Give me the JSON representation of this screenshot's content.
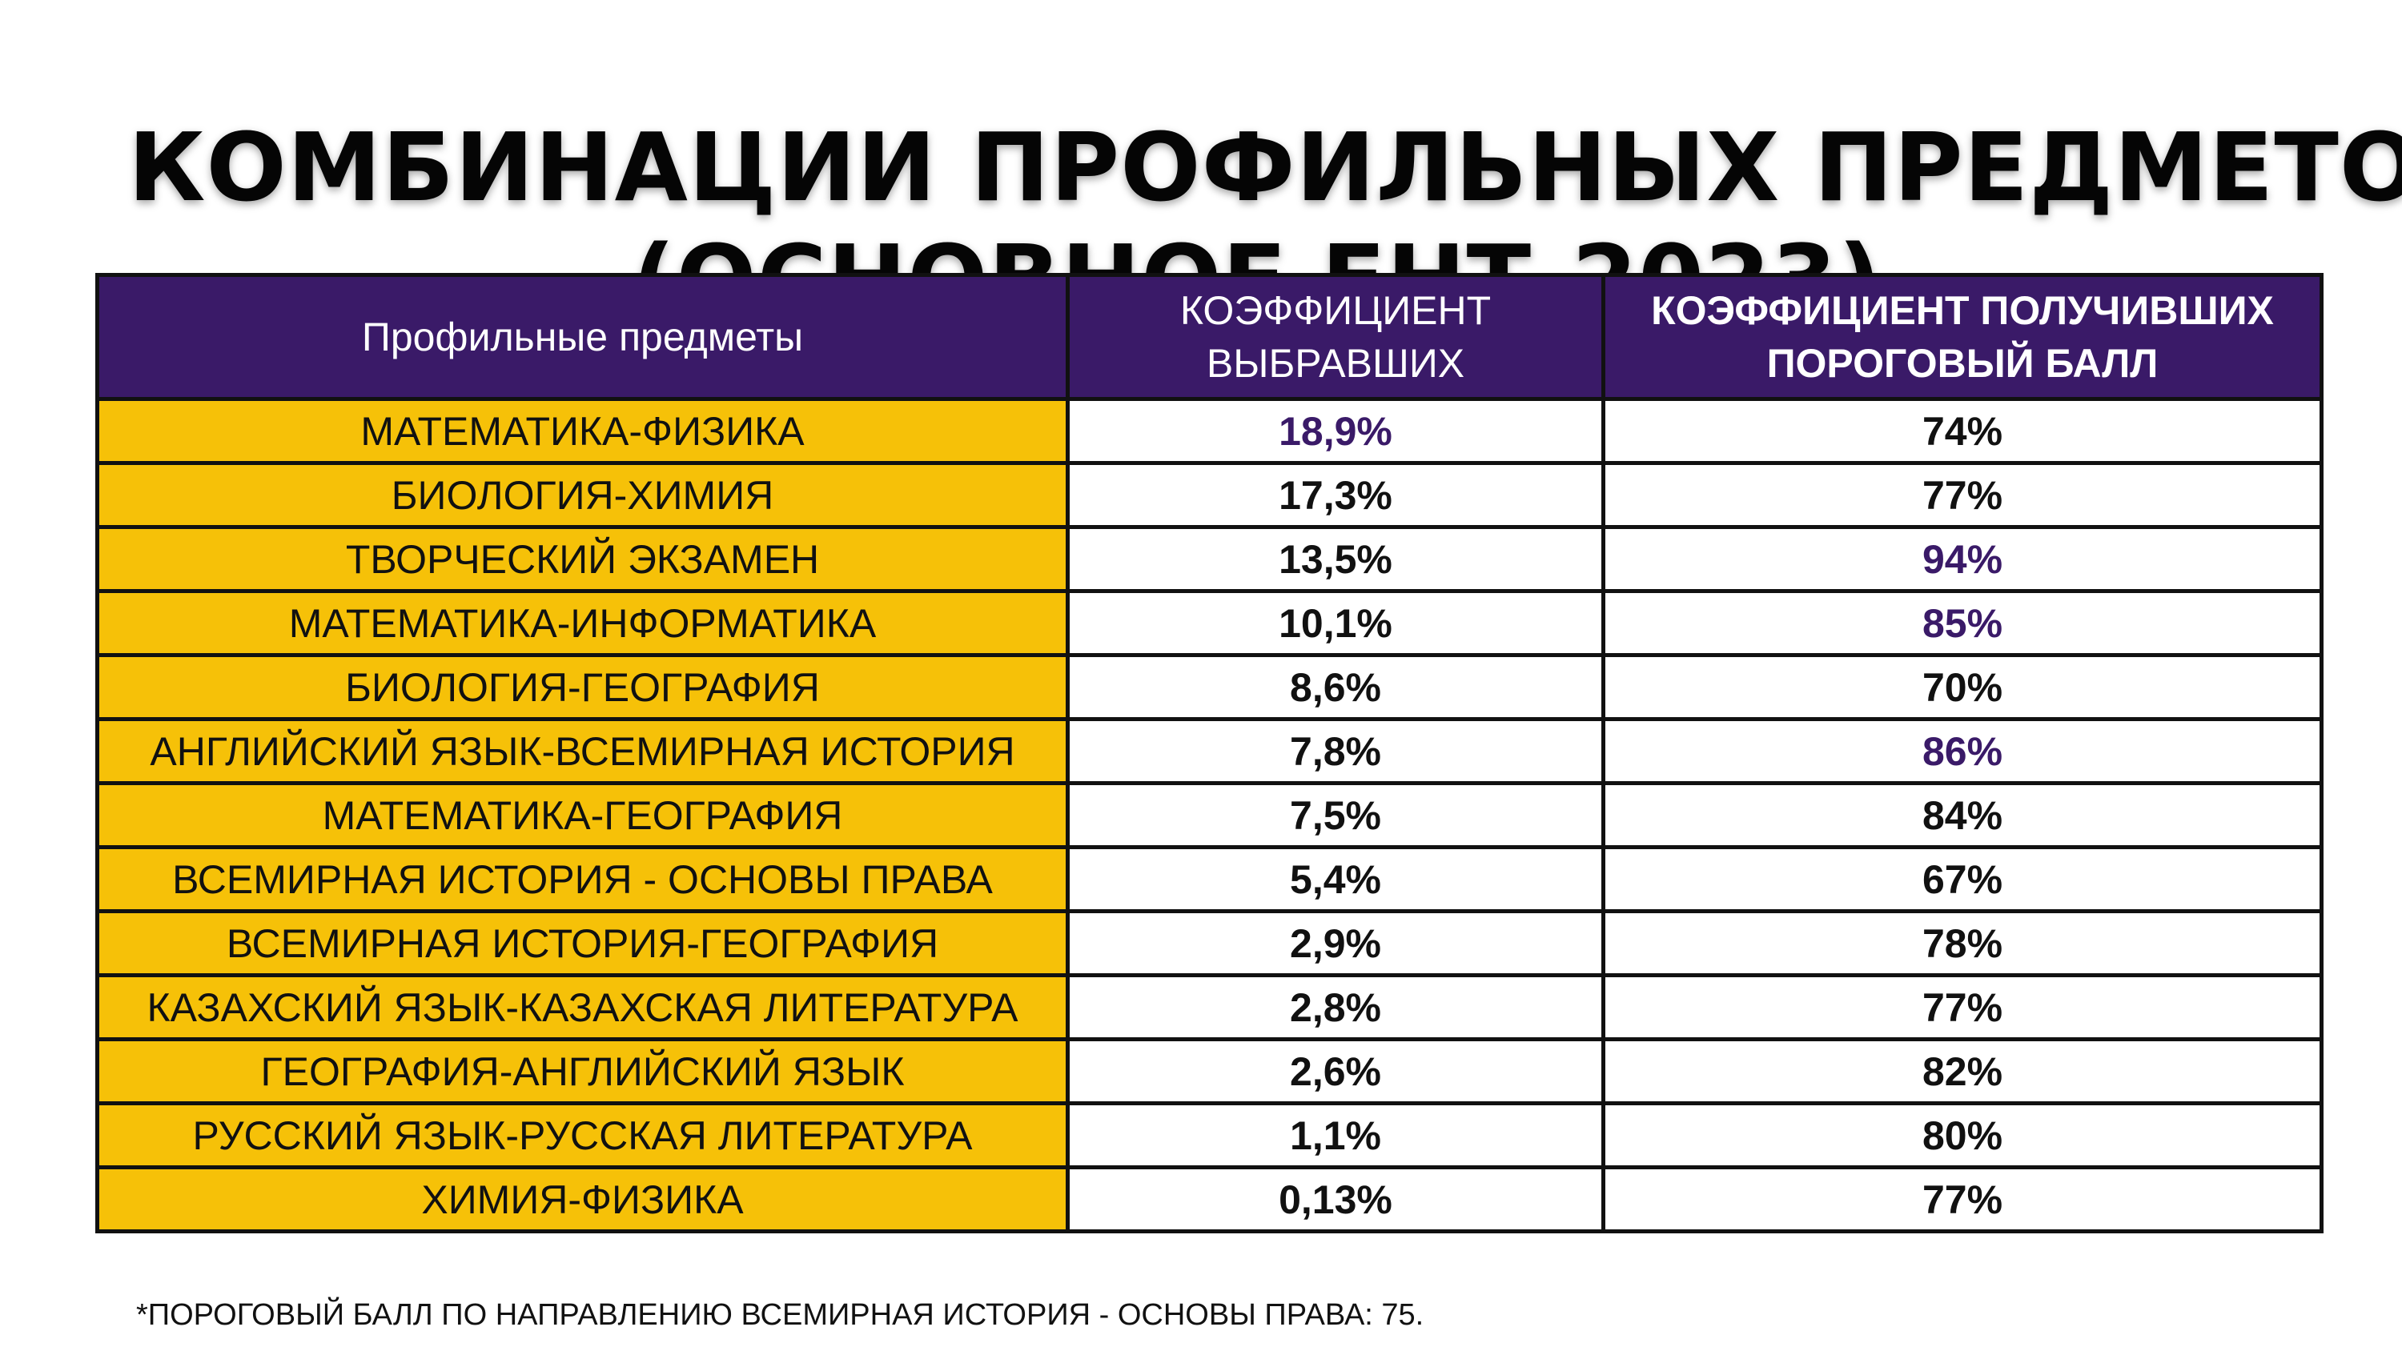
{
  "title": {
    "line1": "КОМБИНАЦИИ ПРОФИЛЬНЫХ ПРЕДМЕТОВ",
    "line2": "(ОСНОВНОЕ ЕНТ-2023)"
  },
  "table": {
    "headers": {
      "subjects": "Профильные предметы",
      "chosen_line1": "КОЭФФИЦИЕНТ",
      "chosen_line2": "ВЫБРАВШИХ",
      "passed_line1": "КОЭФФИЦИЕНТ ПОЛУЧИВШИХ",
      "passed_line2": "ПОРОГОВЫЙ БАЛЛ"
    },
    "rows": [
      {
        "subject": "МАТЕМАТИКА-ФИЗИКА",
        "chosen": "18,9%",
        "passed": "74%"
      },
      {
        "subject": "БИОЛОГИЯ-ХИМИЯ",
        "chosen": "17,3%",
        "passed": "77%"
      },
      {
        "subject": "ТВОРЧЕСКИЙ ЭКЗАМЕН",
        "chosen": "13,5%",
        "passed": "94%"
      },
      {
        "subject": "МАТЕМАТИКА-ИНФОРМАТИКА",
        "chosen": "10,1%",
        "passed": "85%"
      },
      {
        "subject": "БИОЛОГИЯ-ГЕОГРАФИЯ",
        "chosen": "8,6%",
        "passed": "70%"
      },
      {
        "subject": "АНГЛИЙСКИЙ ЯЗЫК-ВСЕМИРНАЯ ИСТОРИЯ",
        "chosen": "7,8%",
        "passed": "86%"
      },
      {
        "subject": "МАТЕМАТИКА-ГЕОГРАФИЯ",
        "chosen": "7,5%",
        "passed": "84%"
      },
      {
        "subject": "ВСЕМИРНАЯ ИСТОРИЯ - ОСНОВЫ ПРАВА",
        "chosen": "5,4%",
        "passed": "67%"
      },
      {
        "subject": "ВСЕМИРНАЯ ИСТОРИЯ-ГЕОГРАФИЯ",
        "chosen": "2,9%",
        "passed": "78%"
      },
      {
        "subject": "КАЗАХСКИЙ ЯЗЫК-КАЗАХСКАЯ ЛИТЕРАТУРА",
        "chosen": "2,8%",
        "passed": "77%"
      },
      {
        "subject": "ГЕОГРАФИЯ-АНГЛИЙСКИЙ ЯЗЫК",
        "chosen": "2,6%",
        "passed": "82%"
      },
      {
        "subject": "РУССКИЙ ЯЗЫК-РУССКАЯ ЛИТЕРАТУРА",
        "chosen": "1,1%",
        "passed": "80%"
      },
      {
        "subject": "ХИМИЯ-ФИЗИКА",
        "chosen": "0,13%",
        "passed": "77%"
      }
    ]
  },
  "footnote": "*ПОРОГОВЫЙ БАЛЛ ПО НАПРАВЛЕНИЮ ВСЕМИРНАЯ ИСТОРИЯ - ОСНОВЫ ПРАВА: 75.",
  "colors": {
    "header_bg": "#3a1a68",
    "subject_bg": "#f6c108",
    "highlight_text": "#3a1a68"
  }
}
